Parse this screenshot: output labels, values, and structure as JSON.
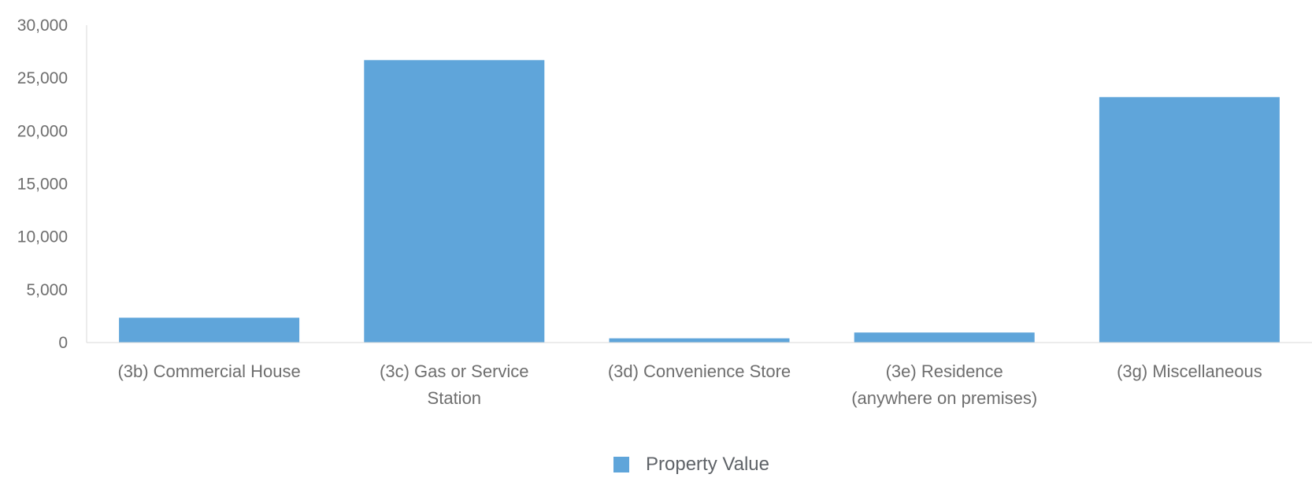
{
  "chart_data": {
    "type": "bar",
    "categories": [
      "(3b) Commercial House",
      "(3c) Gas or Service Station",
      "(3d) Convenience Store",
      "(3e) Residence (anywhere on premises)",
      "(3g) Miscellaneous"
    ],
    "category_label_lines": [
      [
        "(3b) Commercial House"
      ],
      [
        "(3c) Gas or Service",
        "Station"
      ],
      [
        "(3d) Convenience Store"
      ],
      [
        "(3e) Residence",
        "(anywhere on premises)"
      ],
      [
        "(3g) Miscellaneous"
      ]
    ],
    "series": [
      {
        "name": "Property Value",
        "color": "#5fa5da",
        "values": [
          2350,
          26700,
          400,
          950,
          23200
        ]
      }
    ],
    "ylim": [
      0,
      30000
    ],
    "yticks": [
      0,
      5000,
      10000,
      15000,
      20000,
      25000,
      30000
    ],
    "ytick_labels": [
      "0",
      "5,000",
      "10,000",
      "15,000",
      "20,000",
      "25,000",
      "30,000"
    ],
    "grid": false,
    "legend_position": "bottom-center",
    "axis_color": "#d9d9d9"
  }
}
